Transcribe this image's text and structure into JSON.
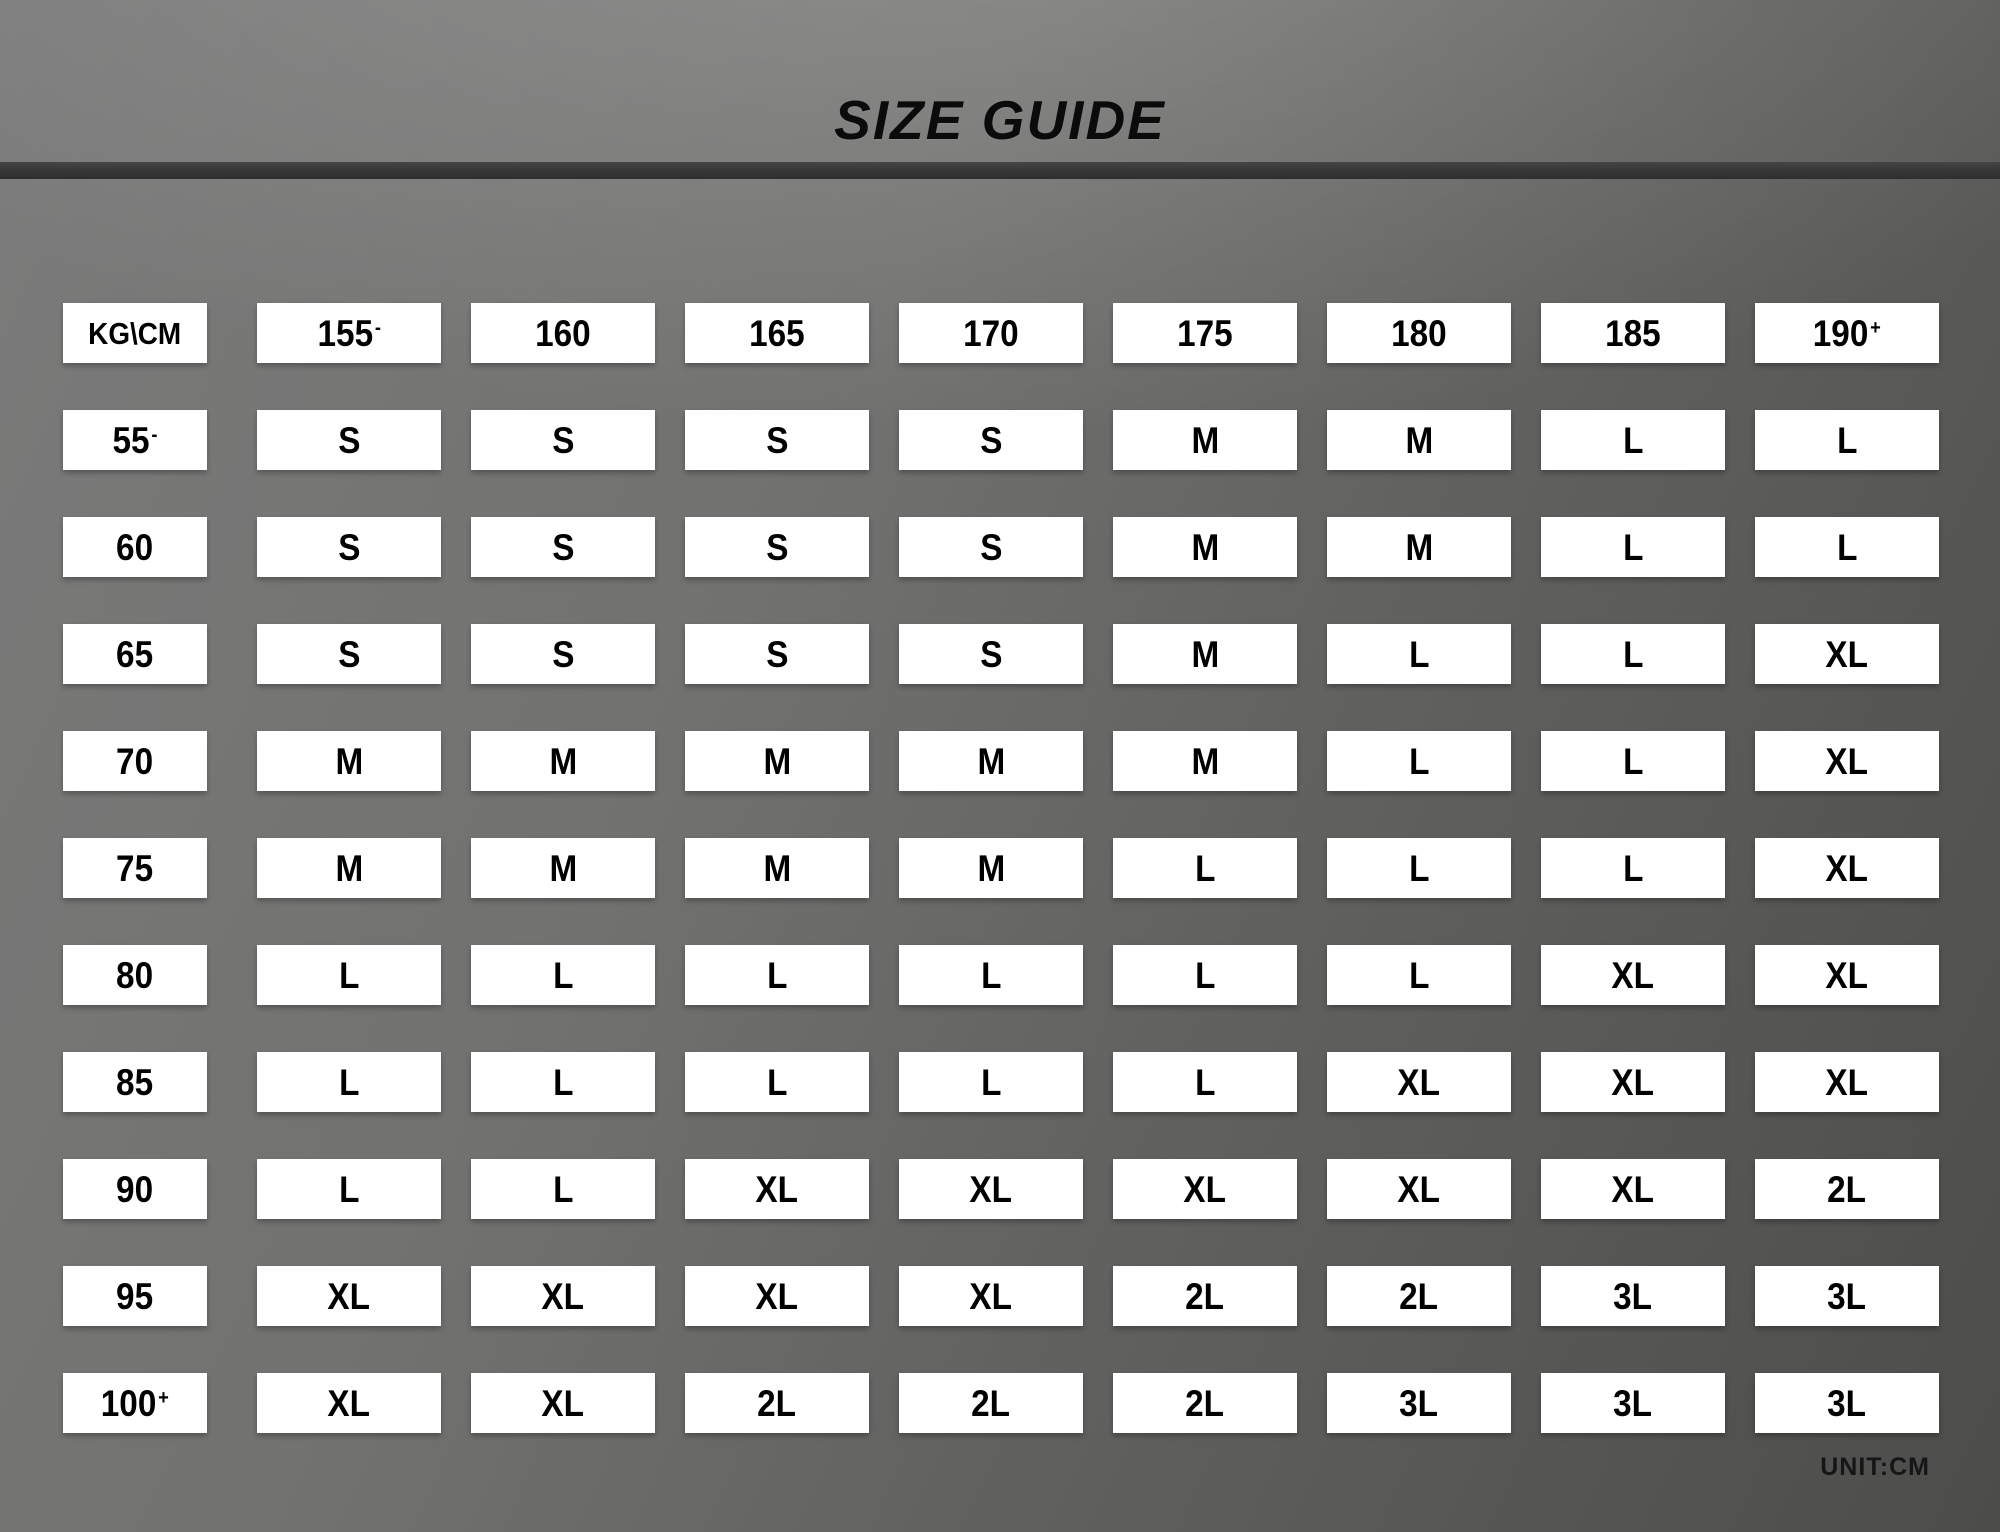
{
  "title": "SIZE GUIDE",
  "unit_label": "UNIT:CM",
  "colors": {
    "background_light": "#8c8c8c",
    "background_dark": "#4c4c4a",
    "divider_bar": "#383838",
    "cell_background": "#ffffff",
    "cell_text": "#000000"
  },
  "chart_data": {
    "type": "table",
    "title": "SIZE GUIDE",
    "unit": "CM",
    "row_axis_label": "KG",
    "column_axis_label": "CM",
    "corner_label": "KG\\CM",
    "columns": [
      {
        "label": "155",
        "suffix": "-"
      },
      {
        "label": "160",
        "suffix": ""
      },
      {
        "label": "165",
        "suffix": ""
      },
      {
        "label": "170",
        "suffix": ""
      },
      {
        "label": "175",
        "suffix": ""
      },
      {
        "label": "180",
        "suffix": ""
      },
      {
        "label": "185",
        "suffix": ""
      },
      {
        "label": "190",
        "suffix": "+"
      }
    ],
    "rows": [
      {
        "label": "55",
        "suffix": "-",
        "values": [
          "S",
          "S",
          "S",
          "S",
          "M",
          "M",
          "L",
          "L"
        ]
      },
      {
        "label": "60",
        "suffix": "",
        "values": [
          "S",
          "S",
          "S",
          "S",
          "M",
          "M",
          "L",
          "L"
        ]
      },
      {
        "label": "65",
        "suffix": "",
        "values": [
          "S",
          "S",
          "S",
          "S",
          "M",
          "L",
          "L",
          "XL"
        ]
      },
      {
        "label": "70",
        "suffix": "",
        "values": [
          "M",
          "M",
          "M",
          "M",
          "M",
          "L",
          "L",
          "XL"
        ]
      },
      {
        "label": "75",
        "suffix": "",
        "values": [
          "M",
          "M",
          "M",
          "M",
          "L",
          "L",
          "L",
          "XL"
        ]
      },
      {
        "label": "80",
        "suffix": "",
        "values": [
          "L",
          "L",
          "L",
          "L",
          "L",
          "L",
          "XL",
          "XL"
        ]
      },
      {
        "label": "85",
        "suffix": "",
        "values": [
          "L",
          "L",
          "L",
          "L",
          "L",
          "XL",
          "XL",
          "XL"
        ]
      },
      {
        "label": "90",
        "suffix": "",
        "values": [
          "L",
          "L",
          "XL",
          "XL",
          "XL",
          "XL",
          "XL",
          "2L"
        ]
      },
      {
        "label": "95",
        "suffix": "",
        "values": [
          "XL",
          "XL",
          "XL",
          "XL",
          "2L",
          "2L",
          "3L",
          "3L"
        ]
      },
      {
        "label": "100",
        "suffix": "+",
        "values": [
          "XL",
          "XL",
          "2L",
          "2L",
          "2L",
          "3L",
          "3L",
          "3L"
        ]
      }
    ]
  }
}
